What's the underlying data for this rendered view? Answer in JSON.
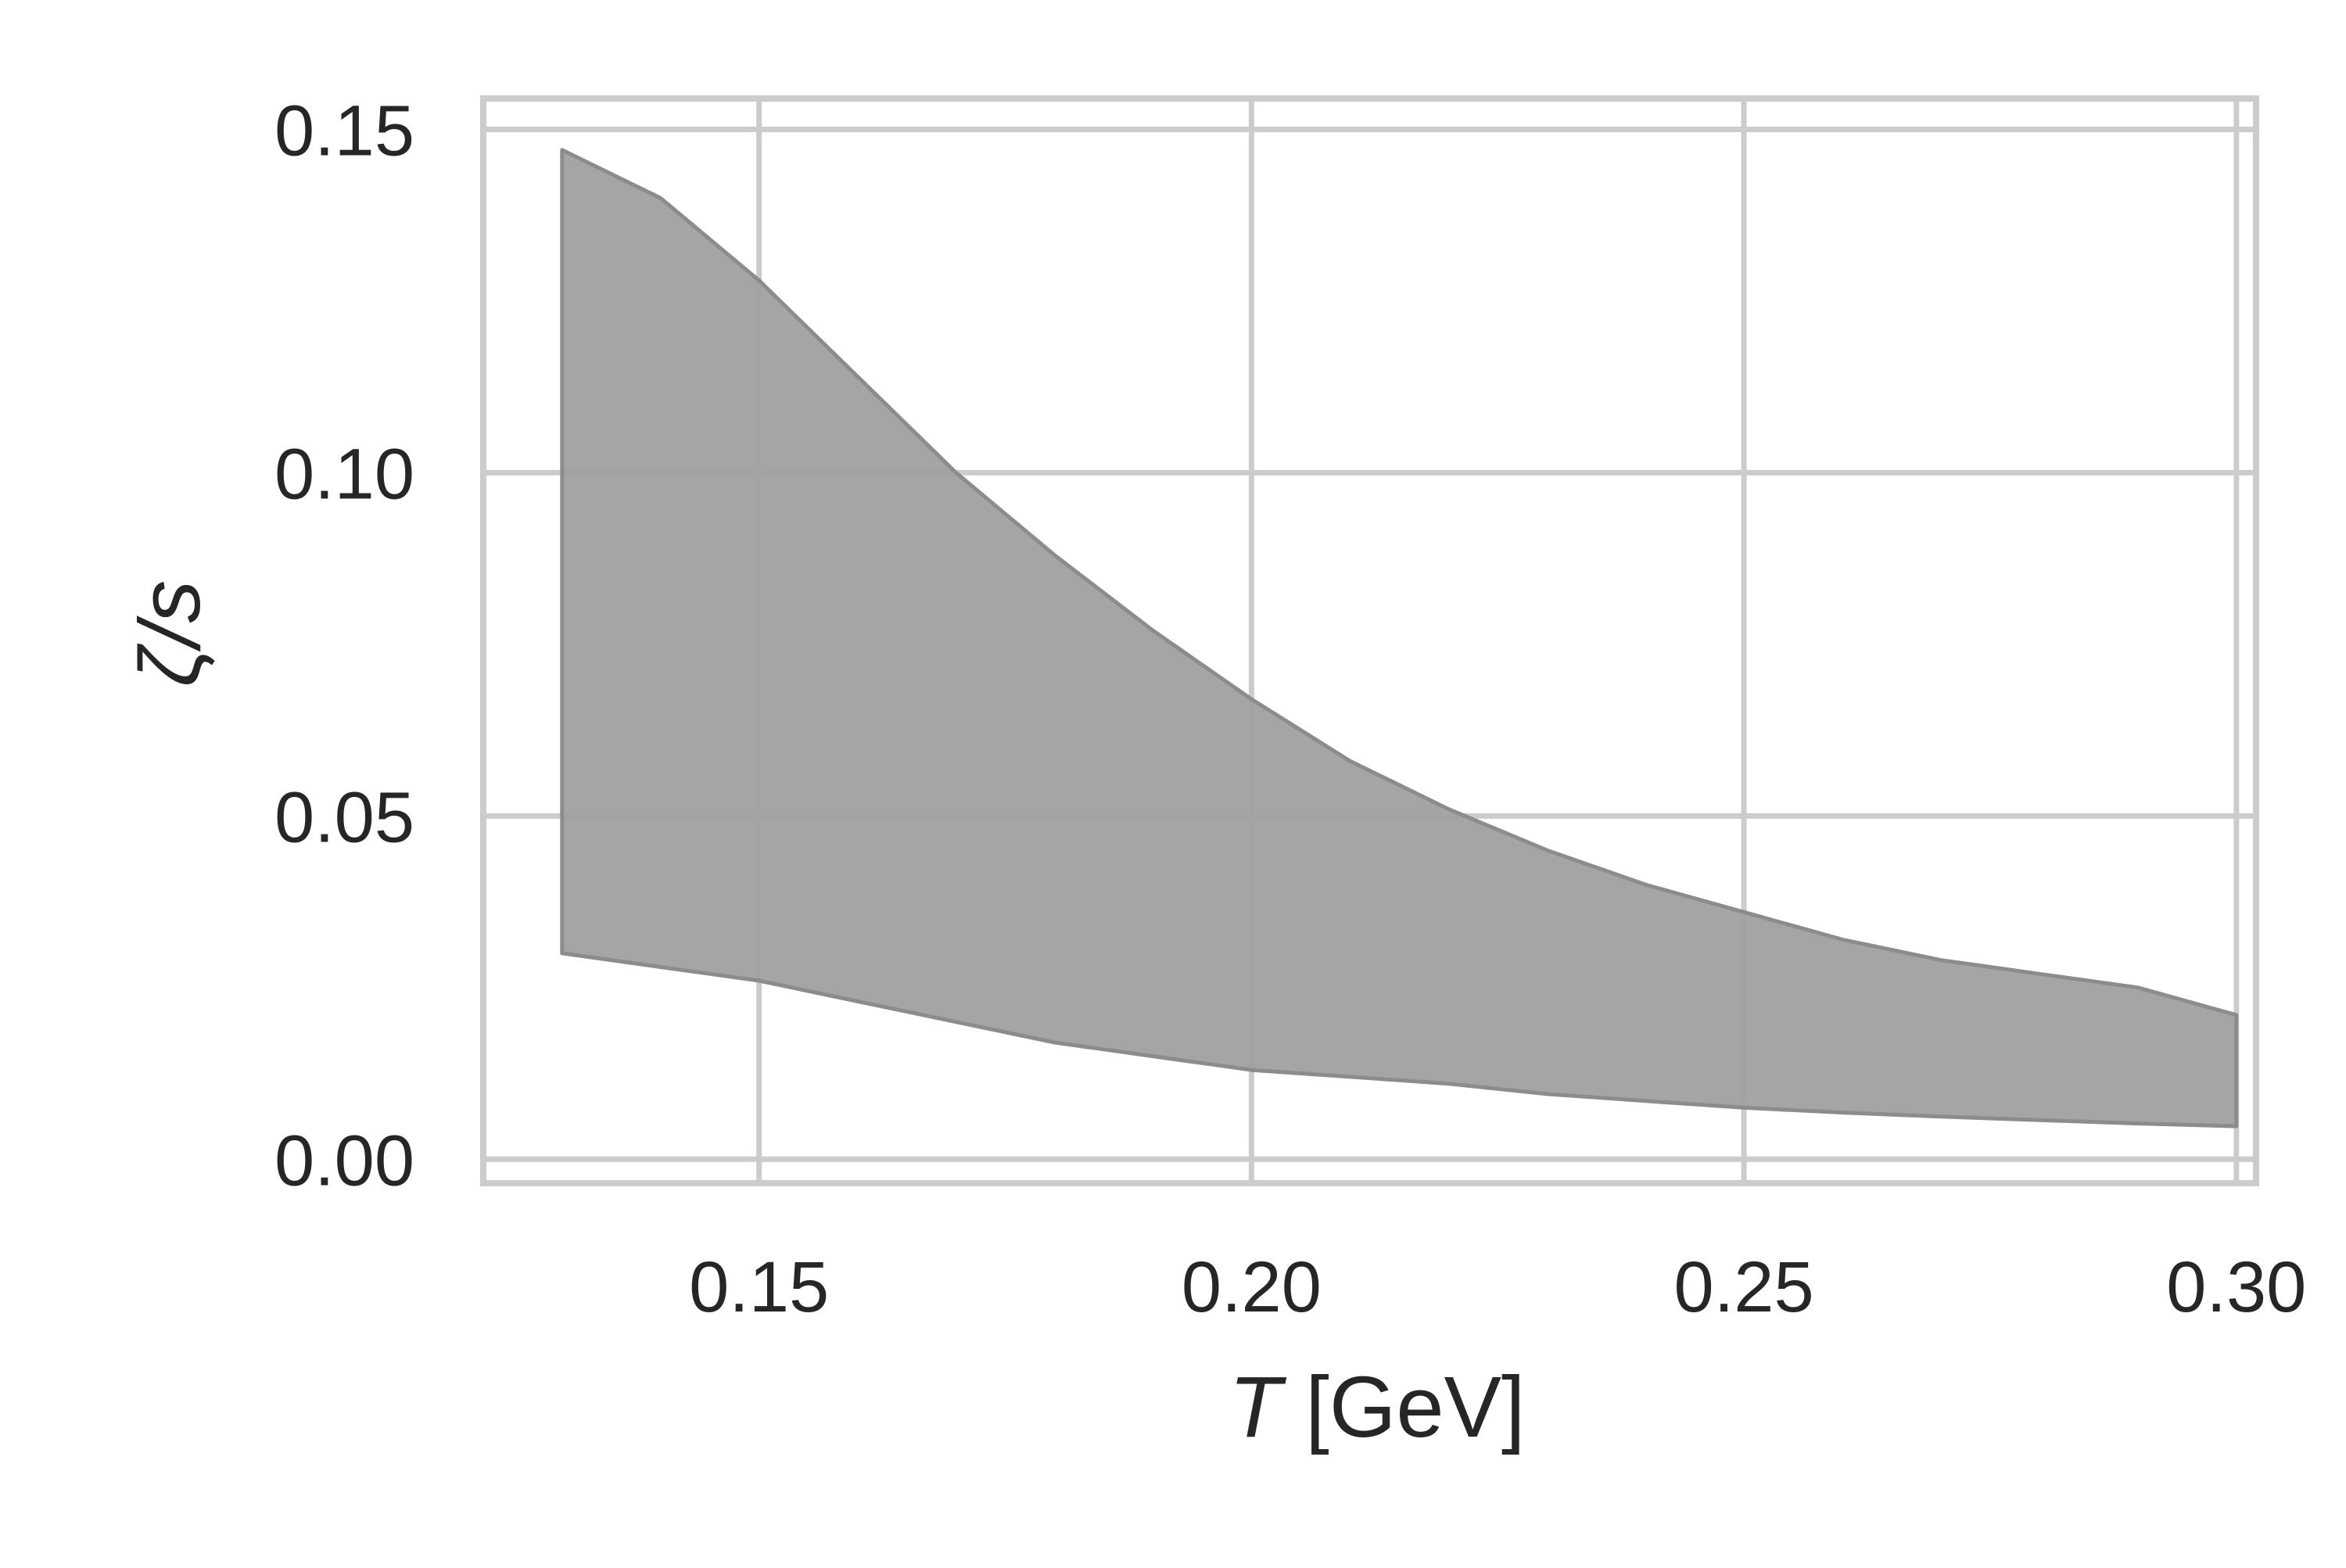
{
  "chart_data": {
    "type": "area",
    "title": "",
    "xlabel_symbol": "T",
    "xlabel_unit": " [GeV]",
    "ylabel": "ζ/s",
    "xlim": [
      0.122,
      0.302
    ],
    "ylim": [
      -0.0035,
      0.1545
    ],
    "x_ticks": [
      0.15,
      0.2,
      0.25,
      0.3
    ],
    "x_tick_labels": [
      "0.15",
      "0.20",
      "0.25",
      "0.30"
    ],
    "y_ticks": [
      0.0,
      0.05,
      0.1,
      0.15
    ],
    "y_tick_labels": [
      "0.00",
      "0.05",
      "0.10",
      "0.15"
    ],
    "grid": true,
    "band": {
      "color": "#a0a0a0",
      "edge_color": "#8c8c8c",
      "x": [
        0.13,
        0.14,
        0.15,
        0.16,
        0.17,
        0.18,
        0.19,
        0.2,
        0.21,
        0.22,
        0.23,
        0.24,
        0.25,
        0.26,
        0.27,
        0.28,
        0.29,
        0.3
      ],
      "upper": [
        0.147,
        0.14,
        0.128,
        0.114,
        0.1,
        0.088,
        0.077,
        0.067,
        0.058,
        0.051,
        0.045,
        0.04,
        0.036,
        0.032,
        0.029,
        0.027,
        0.025,
        0.021
      ],
      "lower": [
        0.03,
        0.028,
        0.026,
        0.023,
        0.02,
        0.017,
        0.015,
        0.013,
        0.012,
        0.011,
        0.0095,
        0.0085,
        0.0075,
        0.0068,
        0.0062,
        0.0057,
        0.0052,
        0.0048
      ]
    }
  }
}
